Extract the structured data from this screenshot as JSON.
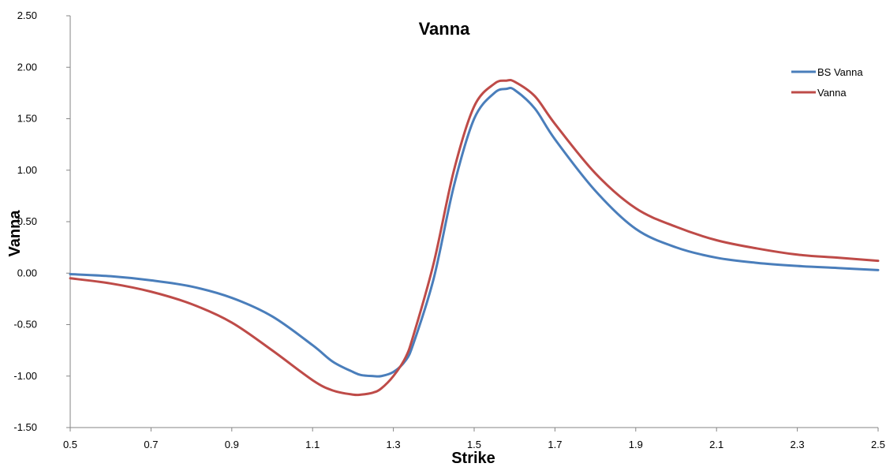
{
  "chart_data": {
    "type": "line",
    "title": "Vanna",
    "xlabel": "Strike",
    "ylabel": "Vanna",
    "xlim": [
      0.5,
      2.5
    ],
    "ylim": [
      -1.5,
      2.5
    ],
    "x_ticks": [
      "0.5",
      "0.7",
      "0.9",
      "1.1",
      "1.3",
      "1.5",
      "1.7",
      "1.9",
      "2.1",
      "2.3",
      "2.5"
    ],
    "y_ticks": [
      "2.50",
      "2.00",
      "1.50",
      "1.00",
      "0.50",
      "0.00",
      "-0.50",
      "-1.00",
      "-1.50"
    ],
    "grid": false,
    "legend_position": "top-right",
    "x": [
      0.5,
      0.6,
      0.7,
      0.8,
      0.9,
      1.0,
      1.1,
      1.15,
      1.2,
      1.22,
      1.25,
      1.27,
      1.3,
      1.33,
      1.35,
      1.4,
      1.45,
      1.5,
      1.55,
      1.58,
      1.6,
      1.65,
      1.7,
      1.8,
      1.9,
      2.0,
      2.1,
      2.2,
      2.3,
      2.4,
      2.5
    ],
    "series": [
      {
        "name": "BS Vanna",
        "color": "#4a7ebb",
        "values": [
          -0.01,
          -0.03,
          -0.07,
          -0.13,
          -0.24,
          -0.42,
          -0.7,
          -0.86,
          -0.96,
          -0.99,
          -1.0,
          -1.0,
          -0.96,
          -0.85,
          -0.68,
          -0.05,
          0.85,
          1.5,
          1.75,
          1.79,
          1.78,
          1.6,
          1.3,
          0.8,
          0.43,
          0.25,
          0.15,
          0.1,
          0.07,
          0.05,
          0.03
        ]
      },
      {
        "name": "Vanna",
        "color": "#be4b48",
        "values": [
          -0.05,
          -0.1,
          -0.18,
          -0.3,
          -0.48,
          -0.75,
          -1.04,
          -1.14,
          -1.18,
          -1.18,
          -1.16,
          -1.12,
          -1.0,
          -0.82,
          -0.6,
          0.1,
          1.0,
          1.62,
          1.84,
          1.87,
          1.86,
          1.72,
          1.45,
          0.97,
          0.63,
          0.45,
          0.32,
          0.24,
          0.18,
          0.15,
          0.12
        ]
      }
    ]
  }
}
